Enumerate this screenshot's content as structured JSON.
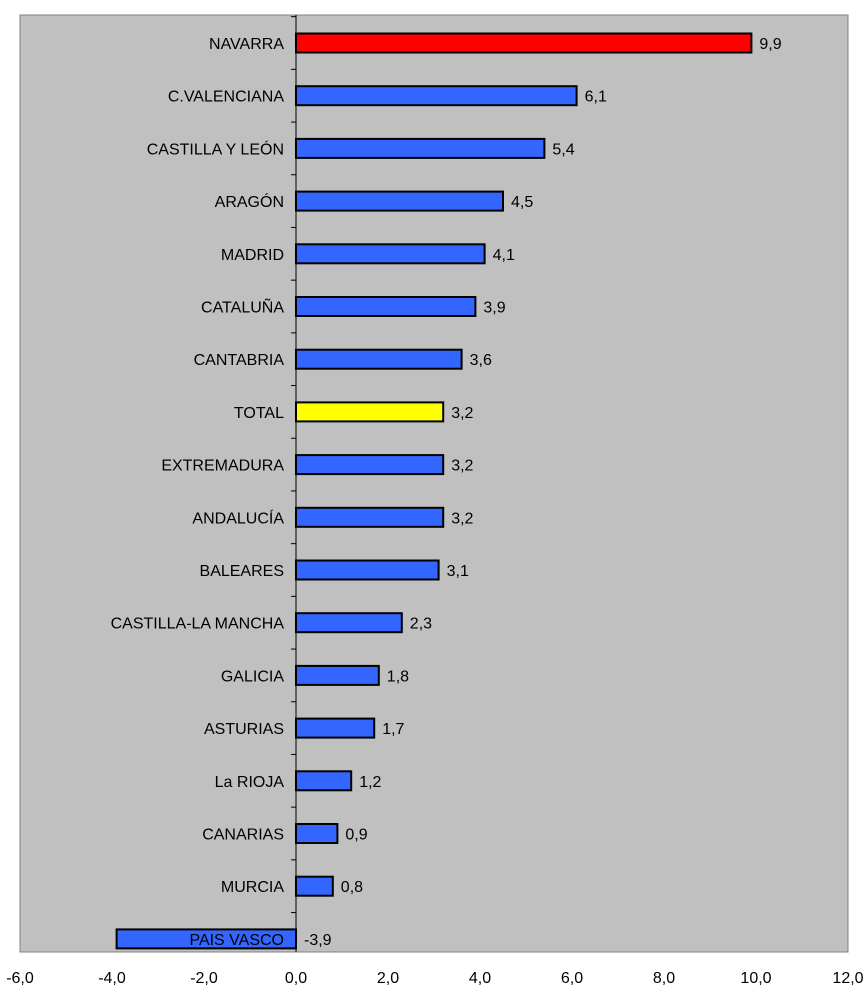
{
  "chart_data": {
    "type": "bar",
    "orientation": "horizontal",
    "categories": [
      "NAVARRA",
      "C.VALENCIANA",
      "CASTILLA Y LEÓN",
      "ARAGÓN",
      "MADRID",
      "CATALUÑA",
      "CANTABRIA",
      "TOTAL",
      "EXTREMADURA",
      "ANDALUCÍA",
      "BALEARES",
      "CASTILLA-LA MANCHA",
      "GALICIA",
      "ASTURIAS",
      "La RIOJA",
      "CANARIAS",
      "MURCIA",
      "PAIS VASCO"
    ],
    "values": [
      9.9,
      6.1,
      5.4,
      4.5,
      4.1,
      3.9,
      3.6,
      3.2,
      3.2,
      3.2,
      3.1,
      2.3,
      1.8,
      1.7,
      1.2,
      0.9,
      0.8,
      -3.9
    ],
    "value_labels": [
      "9,9",
      "6,1",
      "5,4",
      "4,5",
      "4,1",
      "3,9",
      "3,6",
      "3,2",
      "3,2",
      "3,2",
      "3,1",
      "2,3",
      "1,8",
      "1,7",
      "1,2",
      "0,9",
      "0,8",
      "-3,9"
    ],
    "bar_colors": [
      "#ff0000",
      "#3366ff",
      "#3366ff",
      "#3366ff",
      "#3366ff",
      "#3366ff",
      "#3366ff",
      "#ffff00",
      "#3366ff",
      "#3366ff",
      "#3366ff",
      "#3366ff",
      "#3366ff",
      "#3366ff",
      "#3366ff",
      "#3366ff",
      "#3366ff",
      "#3366ff"
    ],
    "xlim": [
      -6.0,
      12.0
    ],
    "x_ticks": [
      -6.0,
      -4.0,
      -2.0,
      0.0,
      2.0,
      4.0,
      6.0,
      8.0,
      10.0,
      12.0
    ],
    "x_tick_labels": [
      "-6,0",
      "-4,0",
      "-2,0",
      "0,0",
      "2,0",
      "4,0",
      "6,0",
      "8,0",
      "10,0",
      "12,0"
    ],
    "plot_background": "#c0c0c0",
    "grid": false,
    "legend": "none",
    "title": "",
    "xlabel": "",
    "ylabel": ""
  }
}
